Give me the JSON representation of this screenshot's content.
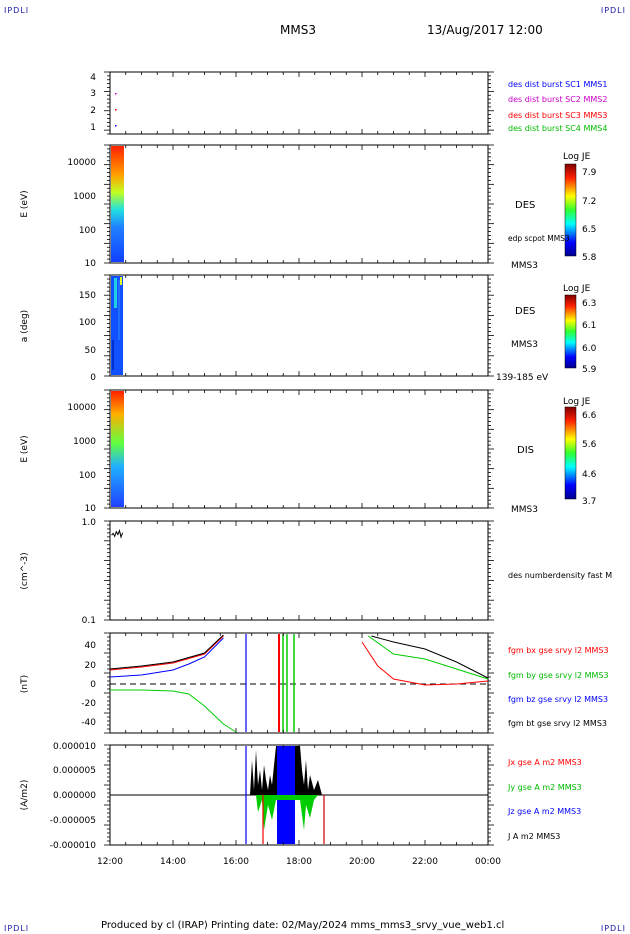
{
  "header": {
    "corner_left": "IPDLI",
    "corner_right": "IPDLI",
    "mission": "MMS3",
    "datetime": "13/Aug/2017 12:00"
  },
  "footer": {
    "text": "Produced by cl (IRAP)   Printing date: 02/May/2024   mms_mms3_srvy_vue_web1.cl",
    "corner_left": "IPDLI",
    "corner_right": "IPDLI"
  },
  "time_axis": [
    "12:00",
    "14:00",
    "16:00",
    "18:00",
    "20:00",
    "22:00",
    "00:00"
  ],
  "colors": {
    "sc1": "#0000ff",
    "sc2": "#cc00cc",
    "sc3": "#ff0000",
    "sc4": "#00bb00",
    "bx": "#ff0000",
    "by": "#00cc00",
    "bz": "#0000ff",
    "bt": "#000000"
  },
  "panels": {
    "p1": {
      "yticks": [
        "4",
        "3",
        "2",
        "1"
      ],
      "legend": [
        "des dist burst SC1 MMS1",
        "des dist burst SC2 MMS2",
        "des dist burst SC3 MMS3",
        "des dist burst SC4 MMS4"
      ]
    },
    "p2": {
      "ylabel": "E (eV)",
      "yticks": [
        "10000",
        "1000",
        "100",
        "10"
      ],
      "right_label": "DES",
      "right_small": "edp scpot MMS3",
      "right_bottom": "MMS3",
      "cbar_title": "Log JE",
      "cbar_ticks": [
        "7.9",
        "7.2",
        "6.5",
        "5.8"
      ]
    },
    "p3": {
      "ylabel": "a (deg)",
      "yticks": [
        "150",
        "100",
        "50",
        "0"
      ],
      "right_label": "DES",
      "right_mid": "MMS3",
      "right_bottom": "139-185 eV",
      "cbar_title": "Log JE",
      "cbar_ticks": [
        "6.3",
        "6.1",
        "6.0",
        "5.9"
      ]
    },
    "p4": {
      "ylabel": "E (eV)",
      "yticks": [
        "10000",
        "1000",
        "100",
        "10"
      ],
      "right_label": "DIS",
      "right_bottom": "MMS3",
      "cbar_title": "Log JE",
      "cbar_ticks": [
        "6.6",
        "5.6",
        "4.6",
        "3.7"
      ]
    },
    "p5": {
      "ylabel": "(cm^-3)",
      "yticks": [
        "1.0",
        "0.1"
      ],
      "legend": "des numberdensity fast M"
    },
    "p6": {
      "ylabel": "(nT)",
      "yticks": [
        "40",
        "20",
        "0",
        "-20",
        "-40"
      ],
      "legend": [
        "fgm bx gse srvy l2 MMS3",
        "fgm by gse srvy l2 MMS3",
        "fgm bz gse srvy l2 MMS3",
        "fgm bt gse srvy l2 MMS3"
      ]
    },
    "p7": {
      "ylabel": "(A/m2)",
      "yticks": [
        "0.000010",
        "0.000005",
        "0.000000",
        "-0.000005",
        "-0.000010"
      ],
      "legend": [
        "Jx gse A m2 MMS3",
        "Jy gse A m2 MMS3",
        "Jz gse A m2 MMS3",
        "J A m2 MMS3"
      ]
    }
  },
  "chart_data": {
    "type": "line",
    "x_range": [
      "12:00",
      "00:00"
    ],
    "density_points": [
      [
        0.05,
        0.72
      ],
      [
        0.1,
        0.75
      ],
      [
        0.15,
        0.7
      ],
      [
        0.2,
        0.78
      ],
      [
        0.25,
        0.73
      ],
      [
        0.3,
        0.8
      ],
      [
        0.35,
        0.69
      ],
      [
        0.4,
        0.76
      ]
    ],
    "bfield_series": [
      {
        "name": "fgm bx gse srvy l2 MMS3",
        "x": [
          0.0,
          1.0,
          2.0,
          3.0,
          3.6,
          8.0,
          8.5,
          9.0,
          10.0,
          11.0,
          12.0
        ],
        "y": [
          14,
          17,
          21,
          30,
          48,
          42,
          18,
          5,
          -1,
          0,
          3
        ]
      },
      {
        "name": "fgm by gse srvy l2 MMS3",
        "x": [
          0.0,
          1.0,
          2.0,
          2.5,
          3.0,
          3.6,
          4.0,
          8.2,
          9.0,
          10.0,
          11.0,
          12.0
        ],
        "y": [
          -6,
          -6,
          -7,
          -10,
          -22,
          -40,
          -48,
          48,
          30,
          25,
          15,
          5
        ]
      },
      {
        "name": "fgm bz gse srvy l2 MMS3",
        "x": [
          0.0,
          1.0,
          2.0,
          2.5,
          3.0,
          3.6
        ],
        "y": [
          7,
          9,
          14,
          20,
          27,
          46
        ]
      },
      {
        "name": "fgm bt gse srvy l2 MMS3",
        "x": [
          0.0,
          1.0,
          2.0,
          3.0,
          3.6,
          8.3,
          9.0,
          10.0,
          11.0,
          12.0
        ],
        "y": [
          15,
          18,
          22,
          31,
          49,
          48,
          42,
          35,
          22,
          6
        ]
      }
    ]
  }
}
